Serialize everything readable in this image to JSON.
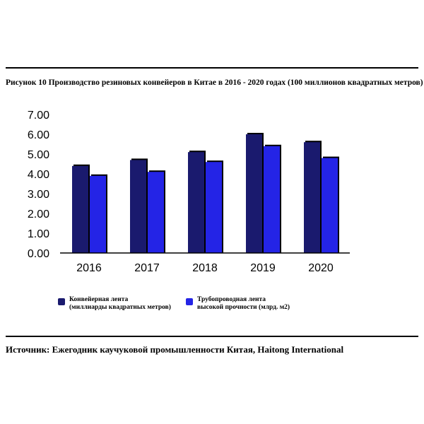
{
  "title": "Рисунок 10 Производство резиновых конвейеров в Китае в 2016 - 2020 годах (100 миллионов квадратных метров)",
  "source": "Источник: Ежегодник каучуковой промышленности Китая, Haitong International",
  "colors": {
    "series_1": "#1a1a6e",
    "series_2": "#2424e6"
  },
  "chart_data": {
    "type": "bar",
    "title": "Рисунок 10 Производство резиновых конвейеров в Китае в 2016 - 2020 годах (100 миллионов квадратных метров)",
    "categories": [
      "2016",
      "2017",
      "2018",
      "2019",
      "2020"
    ],
    "series": [
      {
        "name": "Конвейерная лента (миллиарды квадратных метров)",
        "values": [
          4.4,
          4.7,
          5.1,
          6.0,
          5.6
        ]
      },
      {
        "name": "Трубопроводная лента высокой прочности (млрд. м2)",
        "values": [
          3.9,
          4.1,
          4.6,
          5.4,
          4.8
        ]
      }
    ],
    "ylim": [
      0,
      7
    ],
    "yticks": [
      "0.00",
      "1.00",
      "2.00",
      "3.00",
      "4.00",
      "5.00",
      "6.00",
      "7.00"
    ],
    "xlabel": "",
    "ylabel": "",
    "grid": false,
    "legend_position": "bottom"
  },
  "legend": [
    {
      "line1": "Конвейерная лента",
      "line2": "(миллиарды квадратных метров)"
    },
    {
      "line1": "Трубопроводная лента",
      "line2": "высокой прочности (млрд. м2)"
    }
  ]
}
